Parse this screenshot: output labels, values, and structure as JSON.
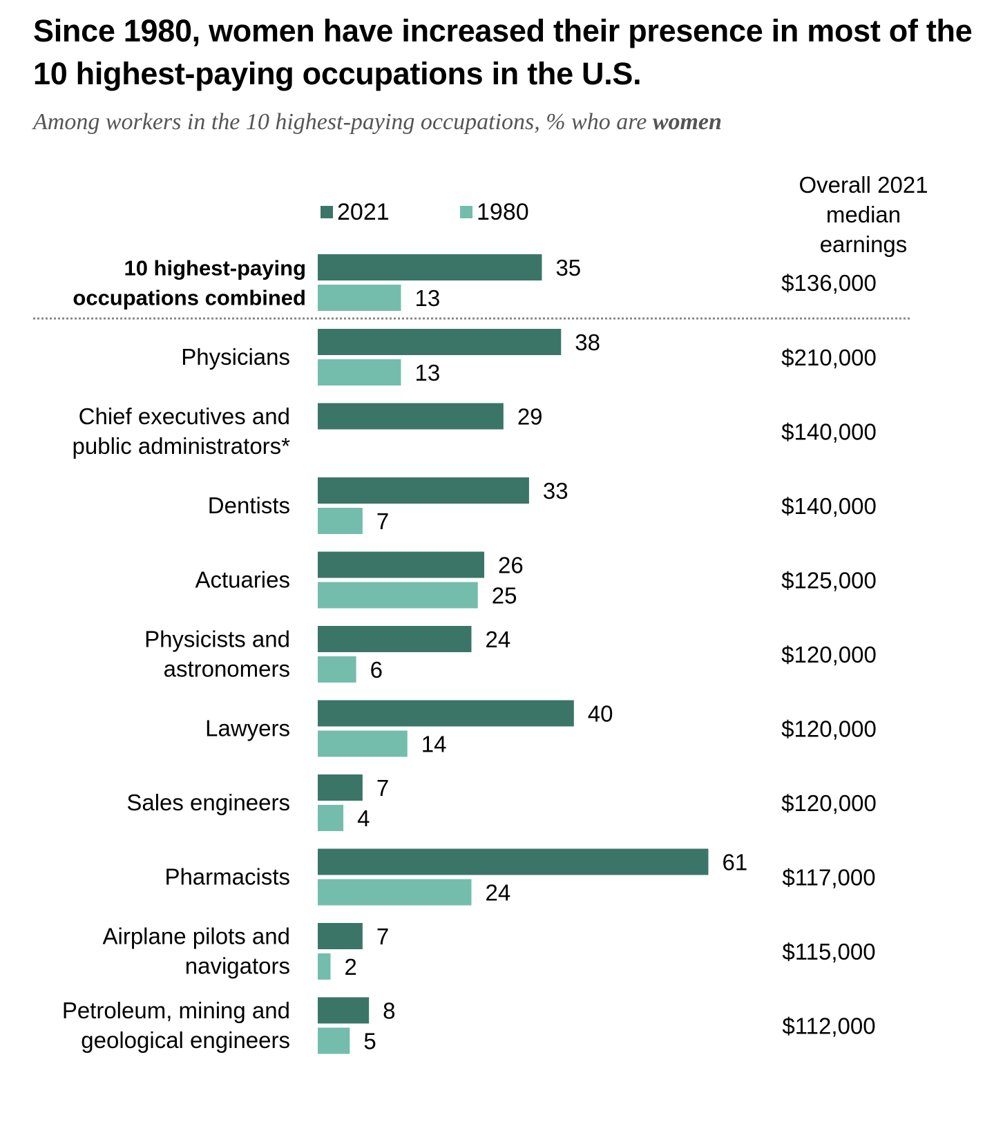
{
  "chart_data": {
    "type": "bar",
    "orientation": "horizontal",
    "title": "Since 1980, women have increased their presence in most of the 10 highest-paying occupations in the U.S.",
    "subtitle": {
      "prefix": "Among workers in the 10 highest-paying occupations, % who are ",
      "emphasis": "women"
    },
    "xlabel": "",
    "ylabel": "",
    "xlim": [
      0,
      65
    ],
    "grid": false,
    "legend": {
      "placement": "top",
      "entries": [
        "2021",
        "1980"
      ]
    },
    "series": [
      {
        "name": "2021",
        "color": "#3a7568"
      },
      {
        "name": "1980",
        "color": "#74bdac"
      }
    ],
    "earnings_header": [
      "Overall 2021",
      "median",
      "earnings"
    ],
    "summary_row": {
      "label_lines": [
        "10 highest-paying",
        "occupations combined"
      ],
      "values": {
        "2021": 35,
        "1980": 13
      },
      "earnings": "$136,000"
    },
    "categories": [
      {
        "label_lines": [
          "Physicians"
        ],
        "values": {
          "2021": 38,
          "1980": 13
        },
        "earnings": "$210,000"
      },
      {
        "label_lines": [
          "Chief executives and",
          "public administrators*"
        ],
        "values": {
          "2021": 29,
          "1980": null
        },
        "earnings": "$140,000"
      },
      {
        "label_lines": [
          "Dentists"
        ],
        "values": {
          "2021": 33,
          "1980": 7
        },
        "earnings": "$140,000"
      },
      {
        "label_lines": [
          "Actuaries"
        ],
        "values": {
          "2021": 26,
          "1980": 25
        },
        "earnings": "$125,000"
      },
      {
        "label_lines": [
          "Physicists and",
          "astronomers"
        ],
        "values": {
          "2021": 24,
          "1980": 6
        },
        "earnings": "$120,000"
      },
      {
        "label_lines": [
          "Lawyers"
        ],
        "values": {
          "2021": 40,
          "1980": 14
        },
        "earnings": "$120,000"
      },
      {
        "label_lines": [
          "Sales engineers"
        ],
        "values": {
          "2021": 7,
          "1980": 4
        },
        "earnings": "$120,000"
      },
      {
        "label_lines": [
          "Pharmacists"
        ],
        "values": {
          "2021": 61,
          "1980": 24
        },
        "earnings": "$117,000"
      },
      {
        "label_lines": [
          "Airplane pilots and",
          "navigators"
        ],
        "values": {
          "2021": 7,
          "1980": 2
        },
        "earnings": "$115,000"
      },
      {
        "label_lines": [
          "Petroleum, mining and",
          "geological engineers"
        ],
        "values": {
          "2021": 8,
          "1980": 5
        },
        "earnings": "$112,000"
      }
    ]
  }
}
